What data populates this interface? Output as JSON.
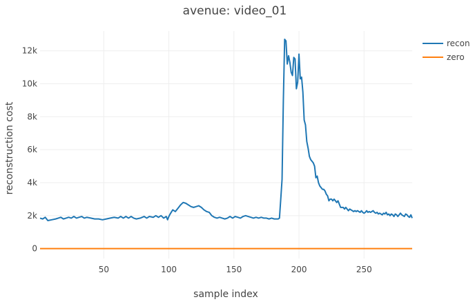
{
  "chart_data": {
    "type": "line",
    "title": "avenue: video_01",
    "xlabel": "sample index",
    "ylabel": "reconstruction cost",
    "xlim": [
      1,
      287
    ],
    "ylim": [
      -600,
      13200
    ],
    "xticks": [
      50,
      100,
      150,
      200,
      250
    ],
    "yticks": [
      0,
      2000,
      4000,
      6000,
      8000,
      10000,
      12000
    ],
    "ytick_labels": [
      "0",
      "2k",
      "4k",
      "6k",
      "8k",
      "10k",
      "12k"
    ],
    "grid": true,
    "legend_position": "top-right",
    "series": [
      {
        "name": "recon",
        "color": "#1f77b4",
        "points": [
          [
            1,
            1850
          ],
          [
            3,
            1800
          ],
          [
            5,
            1900
          ],
          [
            7,
            1700
          ],
          [
            10,
            1750
          ],
          [
            13,
            1800
          ],
          [
            15,
            1850
          ],
          [
            17,
            1900
          ],
          [
            19,
            1800
          ],
          [
            21,
            1850
          ],
          [
            23,
            1900
          ],
          [
            25,
            1850
          ],
          [
            27,
            1950
          ],
          [
            29,
            1850
          ],
          [
            31,
            1900
          ],
          [
            33,
            1950
          ],
          [
            35,
            1850
          ],
          [
            37,
            1900
          ],
          [
            40,
            1850
          ],
          [
            43,
            1800
          ],
          [
            46,
            1800
          ],
          [
            49,
            1750
          ],
          [
            52,
            1800
          ],
          [
            55,
            1850
          ],
          [
            58,
            1900
          ],
          [
            61,
            1850
          ],
          [
            63,
            1950
          ],
          [
            65,
            1850
          ],
          [
            67,
            1950
          ],
          [
            69,
            1850
          ],
          [
            71,
            1950
          ],
          [
            73,
            1850
          ],
          [
            75,
            1800
          ],
          [
            78,
            1850
          ],
          [
            81,
            1950
          ],
          [
            83,
            1850
          ],
          [
            85,
            1950
          ],
          [
            88,
            1900
          ],
          [
            90,
            2000
          ],
          [
            92,
            1900
          ],
          [
            94,
            2000
          ],
          [
            96,
            1850
          ],
          [
            98,
            1950
          ],
          [
            99,
            1750
          ],
          [
            100,
            1950
          ],
          [
            101,
            2100
          ],
          [
            103,
            2350
          ],
          [
            105,
            2250
          ],
          [
            107,
            2450
          ],
          [
            109,
            2650
          ],
          [
            111,
            2800
          ],
          [
            113,
            2750
          ],
          [
            115,
            2650
          ],
          [
            117,
            2550
          ],
          [
            119,
            2500
          ],
          [
            121,
            2550
          ],
          [
            123,
            2600
          ],
          [
            125,
            2500
          ],
          [
            127,
            2350
          ],
          [
            129,
            2250
          ],
          [
            131,
            2200
          ],
          [
            133,
            2000
          ],
          [
            135,
            1900
          ],
          [
            137,
            1850
          ],
          [
            139,
            1900
          ],
          [
            141,
            1850
          ],
          [
            143,
            1800
          ],
          [
            145,
            1850
          ],
          [
            147,
            1950
          ],
          [
            149,
            1850
          ],
          [
            151,
            1950
          ],
          [
            153,
            1900
          ],
          [
            155,
            1850
          ],
          [
            157,
            1950
          ],
          [
            159,
            2000
          ],
          [
            161,
            1950
          ],
          [
            163,
            1900
          ],
          [
            165,
            1850
          ],
          [
            167,
            1900
          ],
          [
            169,
            1850
          ],
          [
            171,
            1900
          ],
          [
            173,
            1850
          ],
          [
            175,
            1850
          ],
          [
            177,
            1800
          ],
          [
            179,
            1850
          ],
          [
            181,
            1800
          ],
          [
            183,
            1800
          ],
          [
            184,
            1800
          ],
          [
            185,
            1850
          ],
          [
            186,
            3000
          ],
          [
            187,
            4200
          ],
          [
            188,
            9000
          ],
          [
            189,
            12700
          ],
          [
            190,
            12600
          ],
          [
            191,
            11200
          ],
          [
            192,
            11700
          ],
          [
            193,
            11300
          ],
          [
            194,
            10700
          ],
          [
            195,
            10500
          ],
          [
            196,
            11600
          ],
          [
            197,
            11500
          ],
          [
            198,
            9700
          ],
          [
            199,
            10100
          ],
          [
            200,
            11800
          ],
          [
            201,
            10300
          ],
          [
            202,
            10400
          ],
          [
            203,
            9500
          ],
          [
            204,
            7800
          ],
          [
            205,
            7500
          ],
          [
            206,
            6500
          ],
          [
            207,
            6100
          ],
          [
            208,
            5600
          ],
          [
            209,
            5400
          ],
          [
            210,
            5300
          ],
          [
            211,
            5200
          ],
          [
            212,
            5000
          ],
          [
            213,
            4300
          ],
          [
            214,
            4400
          ],
          [
            215,
            4000
          ],
          [
            216,
            3800
          ],
          [
            217,
            3700
          ],
          [
            218,
            3600
          ],
          [
            219,
            3600
          ],
          [
            220,
            3500
          ],
          [
            221,
            3300
          ],
          [
            222,
            3200
          ],
          [
            223,
            2900
          ],
          [
            224,
            3000
          ],
          [
            225,
            3000
          ],
          [
            226,
            2900
          ],
          [
            227,
            3000
          ],
          [
            228,
            2900
          ],
          [
            229,
            2800
          ],
          [
            230,
            2900
          ],
          [
            231,
            2700
          ],
          [
            232,
            2500
          ],
          [
            233,
            2500
          ],
          [
            234,
            2500
          ],
          [
            235,
            2400
          ],
          [
            236,
            2500
          ],
          [
            237,
            2400
          ],
          [
            238,
            2300
          ],
          [
            239,
            2400
          ],
          [
            240,
            2350
          ],
          [
            241,
            2300
          ],
          [
            242,
            2250
          ],
          [
            243,
            2300
          ],
          [
            244,
            2250
          ],
          [
            245,
            2300
          ],
          [
            246,
            2250
          ],
          [
            247,
            2200
          ],
          [
            248,
            2300
          ],
          [
            249,
            2200
          ],
          [
            250,
            2150
          ],
          [
            251,
            2200
          ],
          [
            252,
            2300
          ],
          [
            253,
            2200
          ],
          [
            254,
            2250
          ],
          [
            255,
            2200
          ],
          [
            256,
            2250
          ],
          [
            257,
            2300
          ],
          [
            258,
            2200
          ],
          [
            259,
            2150
          ],
          [
            260,
            2200
          ],
          [
            261,
            2100
          ],
          [
            262,
            2150
          ],
          [
            263,
            2100
          ],
          [
            264,
            2050
          ],
          [
            265,
            2150
          ],
          [
            266,
            2100
          ],
          [
            267,
            2200
          ],
          [
            268,
            2050
          ],
          [
            269,
            2100
          ],
          [
            270,
            2000
          ],
          [
            271,
            2100
          ],
          [
            272,
            2050
          ],
          [
            273,
            1950
          ],
          [
            274,
            2100
          ],
          [
            275,
            2050
          ],
          [
            276,
            1950
          ],
          [
            277,
            2050
          ],
          [
            278,
            2150
          ],
          [
            279,
            2050
          ],
          [
            280,
            2000
          ],
          [
            281,
            1950
          ],
          [
            282,
            2100
          ],
          [
            283,
            2050
          ],
          [
            284,
            1950
          ],
          [
            285,
            1900
          ],
          [
            286,
            2050
          ],
          [
            287,
            1850
          ]
        ]
      },
      {
        "name": "zero",
        "color": "#ff7f0e",
        "points": [
          [
            1,
            0
          ],
          [
            287,
            0
          ]
        ]
      }
    ]
  }
}
